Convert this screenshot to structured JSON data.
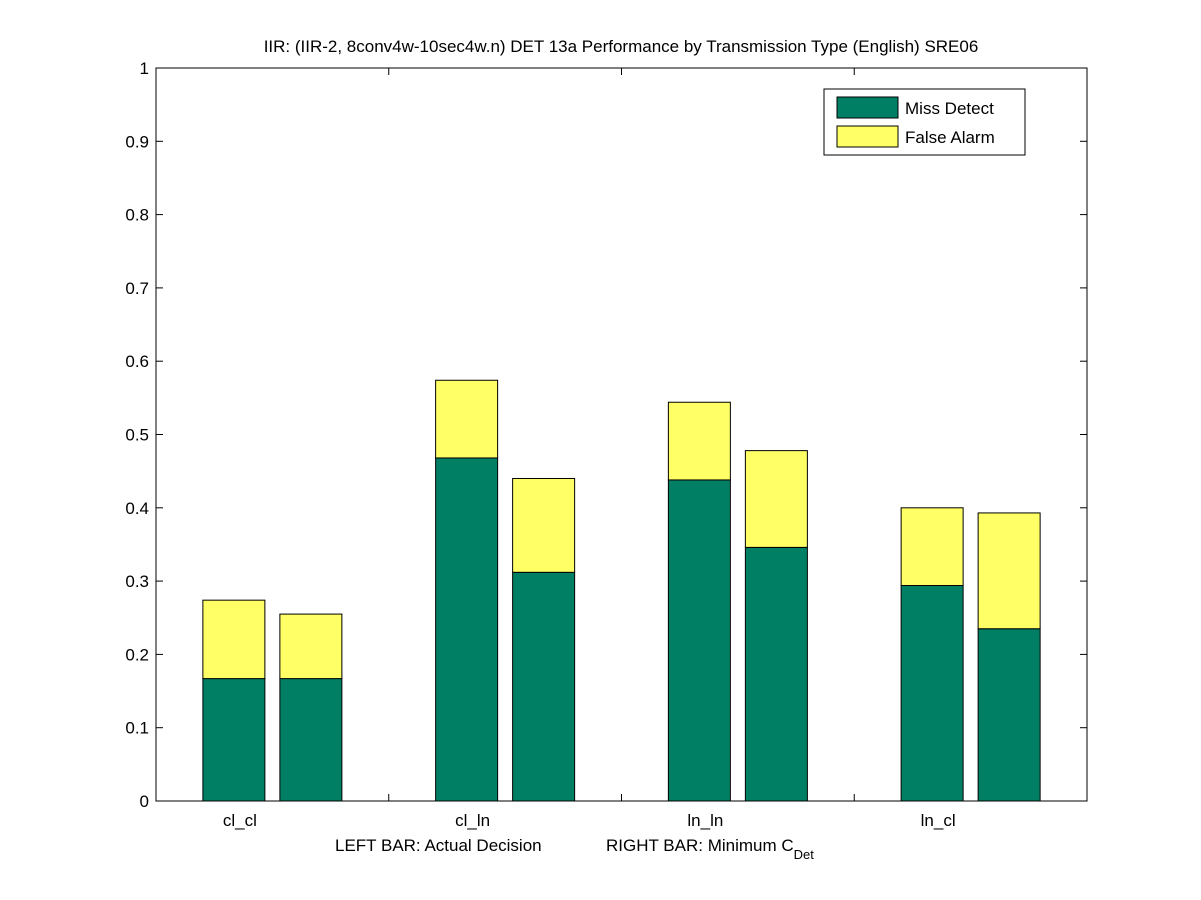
{
  "chart_data": {
    "type": "bar",
    "stacked": true,
    "title": "IIR: (IIR-2, 8conv4w-10sec4w.n) DET 13a Performance by Transmission Type (English) SRE06",
    "xlabel_left": "LEFT BAR: Actual Decision",
    "xlabel_right_main": "RIGHT BAR: Minimum C",
    "xlabel_right_sub": "Det",
    "categories": [
      "cl_cl",
      "cl_ln",
      "ln_ln",
      "ln_cl"
    ],
    "bars_per_category": [
      "Actual Decision",
      "Minimum C_Det"
    ],
    "series": [
      {
        "name": "Miss Detect",
        "color": "#007f65",
        "values": [
          [
            0.167,
            0.167
          ],
          [
            0.468,
            0.312
          ],
          [
            0.438,
            0.346
          ],
          [
            0.294,
            0.235
          ]
        ]
      },
      {
        "name": "False Alarm",
        "color": "#ffff66",
        "values": [
          [
            0.107,
            0.088
          ],
          [
            0.106,
            0.128
          ],
          [
            0.106,
            0.132
          ],
          [
            0.106,
            0.158
          ]
        ]
      }
    ],
    "ylim": [
      0,
      1
    ],
    "yticks": [
      "0",
      "0.1",
      "0.2",
      "0.3",
      "0.4",
      "0.5",
      "0.6",
      "0.7",
      "0.8",
      "0.9",
      "1"
    ],
    "grid": false,
    "legend_position": "top-right"
  }
}
